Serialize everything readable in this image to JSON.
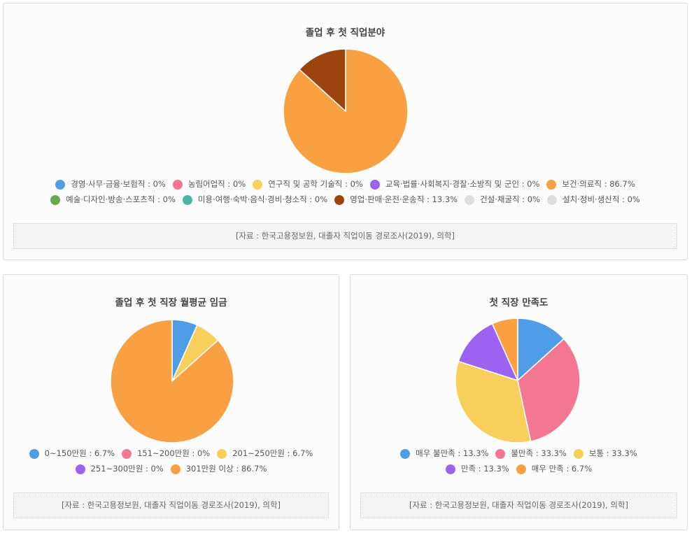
{
  "source_note": "[자료 : 한국고용정보원, 대졸자 직업이동 경로조사(2019), 의학]",
  "chart_data": [
    {
      "type": "pie",
      "title": "졸업 후 첫 직업분야",
      "slices": [
        {
          "label": "경영·사무·금융·보험직",
          "value": 0,
          "color": "#4f9de6"
        },
        {
          "label": "농림어업직",
          "value": 0,
          "color": "#f47792"
        },
        {
          "label": "연구직 및 공학 기술직",
          "value": 0,
          "color": "#f8cf5a"
        },
        {
          "label": "교육·법률·사회복지·경찰·소방직 및 군인",
          "value": 0,
          "color": "#9b63ef"
        },
        {
          "label": "보건·의료직",
          "value": 86.7,
          "color": "#f8a042"
        },
        {
          "label": "예술·디자인·방송·스포츠직",
          "value": 0,
          "color": "#6aa84f"
        },
        {
          "label": "미용·여행·숙박·음식·경비·청소직",
          "value": 0,
          "color": "#4bb5a3"
        },
        {
          "label": "영업·판매·운전·운송직",
          "value": 13.3,
          "color": "#9c440e"
        },
        {
          "label": "건설·채굴직",
          "value": 0,
          "color": "#dedede"
        },
        {
          "label": "설치·정비·생산직",
          "value": 0,
          "color": "#dedede"
        }
      ],
      "legend_rows": [
        [
          0,
          1,
          2,
          3,
          4
        ],
        [
          5,
          6,
          7,
          8,
          9
        ]
      ]
    },
    {
      "type": "pie",
      "title": "졸업 후 첫 직장 월평균 임금",
      "slices": [
        {
          "label": "0~150만원",
          "value": 6.7,
          "color": "#4f9de6"
        },
        {
          "label": "151~200만원",
          "value": 0,
          "color": "#f47792"
        },
        {
          "label": "201~250만원",
          "value": 6.7,
          "color": "#f8cf5a"
        },
        {
          "label": "251~300만원",
          "value": 0,
          "color": "#9b63ef"
        },
        {
          "label": "301만원 이상",
          "value": 86.7,
          "color": "#f8a042"
        }
      ],
      "legend_rows": [
        [
          0,
          1,
          2
        ],
        [
          3,
          4
        ]
      ]
    },
    {
      "type": "pie",
      "title": "첫 직장 만족도",
      "slices": [
        {
          "label": "매우 불만족",
          "value": 13.3,
          "color": "#4f9de6"
        },
        {
          "label": "불만족",
          "value": 33.3,
          "color": "#f47792"
        },
        {
          "label": "보통",
          "value": 33.3,
          "color": "#f8cf5a"
        },
        {
          "label": "만족",
          "value": 13.3,
          "color": "#9b63ef"
        },
        {
          "label": "매우 만족",
          "value": 6.7,
          "color": "#f8a042"
        }
      ],
      "legend_rows": [
        [
          0,
          1,
          2
        ],
        [
          3,
          4
        ]
      ]
    }
  ]
}
